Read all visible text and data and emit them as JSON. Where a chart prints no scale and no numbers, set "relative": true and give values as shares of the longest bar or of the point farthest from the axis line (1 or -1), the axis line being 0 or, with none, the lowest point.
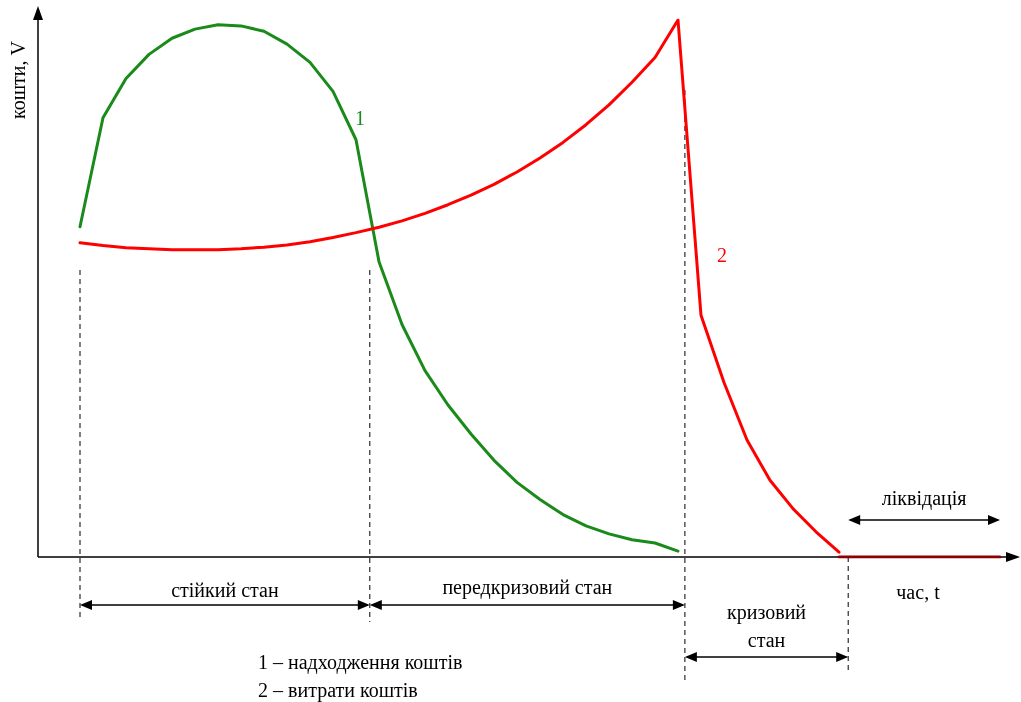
{
  "chart_data": {
    "type": "line",
    "relative": true,
    "xlabel": "час, t",
    "ylabel": "кошти, V",
    "categories": [
      null,
      null,
      null,
      null,
      null,
      null,
      null,
      null,
      null,
      null,
      null,
      null,
      null,
      null,
      null,
      null,
      null,
      null,
      null,
      null,
      null,
      null,
      null,
      null,
      null,
      null,
      null,
      null,
      null,
      null,
      null,
      null,
      null,
      null,
      null,
      null,
      null,
      null,
      null,
      null,
      null
    ],
    "series": [
      {
        "name": "1",
        "color": "#1a8a1a",
        "values": [
          0.615,
          0.818,
          0.891,
          0.936,
          0.966,
          0.983,
          0.991,
          0.989,
          0.979,
          0.955,
          0.921,
          0.867,
          0.777,
          0.55,
          0.433,
          0.347,
          0.283,
          0.229,
          0.18,
          0.139,
          0.107,
          0.079,
          0.058,
          0.043,
          0.032,
          0.026,
          0.011,
          null,
          null,
          null,
          null,
          null,
          null,
          null,
          null,
          null,
          null,
          null,
          null,
          null,
          null
        ]
      },
      {
        "name": "2",
        "color": "#ff0000",
        "values": [
          0.585,
          0.58,
          0.576,
          0.574,
          0.572,
          0.572,
          0.572,
          0.574,
          0.577,
          0.581,
          0.587,
          0.595,
          0.604,
          0.614,
          0.626,
          0.64,
          0.656,
          0.674,
          0.694,
          0.717,
          0.743,
          0.772,
          0.805,
          0.842,
          0.884,
          0.93,
          1,
          0.45,
          0.325,
          0.218,
          0.143,
          0.09,
          0.047,
          0.009,
          null,
          null,
          null,
          null,
          null,
          null,
          null
        ]
      },
      {
        "color": "#8b0000",
        "values": [
          null,
          null,
          null,
          null,
          null,
          null,
          null,
          null,
          null,
          null,
          null,
          null,
          null,
          null,
          null,
          null,
          null,
          null,
          null,
          null,
          null,
          null,
          null,
          null,
          null,
          null,
          null,
          null,
          null,
          null,
          null,
          null,
          null,
          0,
          0,
          0,
          0,
          0,
          0,
          0,
          0
        ]
      }
    ],
    "annotations": [
      "стійкий стан",
      "передкризовий стан",
      "кризовий стан",
      "ліквідація",
      "1 – надходження коштів",
      "2 – витрати коштів"
    ],
    "grid": false,
    "legend": false,
    "marker": "none",
    "line_style": "solid"
  }
}
